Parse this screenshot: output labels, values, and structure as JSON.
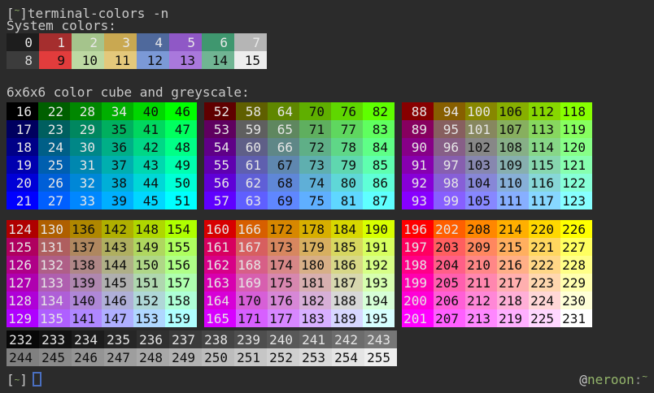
{
  "terminal": {
    "background": "#2b2b2b",
    "foreground": "#c9c9c9",
    "accent_green": "#94b56b",
    "cursor_border": "#4a6fc0"
  },
  "prompt": {
    "bracket_open": "[",
    "tilde": "~",
    "bracket_close": "]",
    "command": "terminal-colors -n"
  },
  "sections": {
    "system_label": "System colors:",
    "cube_label": "6x6x6 color cube and greyscale:"
  },
  "system_colors": {
    "rows": [
      {
        "cells": [
          {
            "n": 0,
            "bg": "#1d1d1d",
            "fg": "#e8e8e8"
          },
          {
            "n": 1,
            "bg": "#a52e2e",
            "fg": "#e8e8e8"
          },
          {
            "n": 2,
            "bg": "#a5c48c",
            "fg": "#e8e8e8"
          },
          {
            "n": 3,
            "bg": "#c9a851",
            "fg": "#e8e8e8"
          },
          {
            "n": 4,
            "bg": "#4f699c",
            "fg": "#e8e8e8"
          },
          {
            "n": 5,
            "bg": "#8f58c6",
            "fg": "#e8e8e8"
          },
          {
            "n": 6,
            "bg": "#3f976f",
            "fg": "#e8e8e8"
          },
          {
            "n": 7,
            "bg": "#b5b5b5",
            "fg": "#e8e8e8"
          }
        ]
      },
      {
        "cells": [
          {
            "n": 8,
            "bg": "#3c3c3c",
            "fg": "#d8d8d8"
          },
          {
            "n": 9,
            "bg": "#e23c3c",
            "fg": "#0d0d0d"
          },
          {
            "n": 10,
            "bg": "#bdd9a3",
            "fg": "#0d0d0d"
          },
          {
            "n": 11,
            "bg": "#e4c87b",
            "fg": "#0d0d0d"
          },
          {
            "n": 12,
            "bg": "#7b99d6",
            "fg": "#0d0d0d"
          },
          {
            "n": 13,
            "bg": "#a978dc",
            "fg": "#0d0d0d"
          },
          {
            "n": 14,
            "bg": "#70b593",
            "fg": "#0d0d0d"
          },
          {
            "n": 15,
            "bg": "#ededed",
            "fg": "#0d0d0d"
          }
        ]
      }
    ]
  },
  "cube": {
    "index_range": [
      16,
      231
    ],
    "block_starts_row1": [
      16,
      52,
      88
    ],
    "block_starts_row2": [
      124,
      160,
      196
    ],
    "channel_levels": [
      0,
      95,
      135,
      175,
      215,
      255
    ],
    "black_text_min_b_by_r_g": [
      [
        6,
        6,
        6,
        1,
        0,
        0
      ],
      [
        6,
        6,
        3,
        0,
        0,
        0
      ],
      [
        6,
        6,
        2,
        0,
        0,
        0
      ],
      [
        6,
        6,
        0,
        0,
        0,
        0
      ],
      [
        6,
        4,
        0,
        0,
        0,
        0
      ],
      [
        6,
        1,
        0,
        0,
        0,
        0
      ]
    ],
    "text_white": "#e6e6e6",
    "text_black": "#0d0d0d"
  },
  "greyscale": {
    "row1_start": 232,
    "row1_end": 243,
    "row2_start": 244,
    "row2_end": 255,
    "base_value": 8,
    "step": 10,
    "row1_text": "#e6e6e6",
    "row2_text": "#0d0d0d"
  },
  "statusbar": {
    "at": "@",
    "host": "neroon",
    "separator": ":",
    "path_tilde": "~"
  }
}
